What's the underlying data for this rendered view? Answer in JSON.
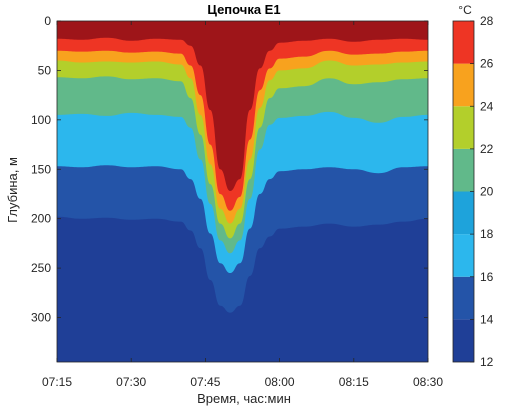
{
  "chart_data": {
    "type": "area",
    "title": "Цепочка E1",
    "xlabel": "Время, час:мин",
    "ylabel": "Глубина, м",
    "x_ticks": [
      "07:15",
      "07:30",
      "07:45",
      "08:00",
      "08:15",
      "08:30"
    ],
    "y_ticks": [
      "0",
      "50",
      "100",
      "150",
      "200",
      "250",
      "300"
    ],
    "y_reversed": true,
    "ylim": [
      0,
      345
    ],
    "xlim": [
      "07:15",
      "08:30"
    ],
    "colorbar": {
      "unit": "°C",
      "ticks": [
        "12",
        "14",
        "16",
        "18",
        "20",
        "22",
        "24",
        "26",
        "28"
      ],
      "levels": [
        12,
        14,
        16,
        18,
        20,
        22,
        24,
        26,
        28
      ],
      "colors": [
        "#1f3f97",
        "#2454a8",
        "#2cb7ed",
        "#1ea3db",
        "#61b98a",
        "#b3cf2b",
        "#f8a21e",
        "#ee3524",
        "#9e1519"
      ]
    },
    "x": [
      "07:15",
      "07:20",
      "07:25",
      "07:30",
      "07:35",
      "07:40",
      "07:42",
      "07:44",
      "07:46",
      "07:48",
      "07:50",
      "07:52",
      "07:54",
      "07:56",
      "07:58",
      "08:00",
      "08:05",
      "08:10",
      "08:15",
      "08:20",
      "08:25",
      "08:30"
    ],
    "isotherms": [
      {
        "name": "26",
        "depths": [
          18,
          19,
          17,
          20,
          18,
          19,
          25,
          45,
          90,
          150,
          172,
          160,
          90,
          48,
          30,
          22,
          20,
          18,
          21,
          19,
          18,
          19
        ]
      },
      {
        "name": "24",
        "depths": [
          30,
          31,
          30,
          32,
          31,
          33,
          45,
          75,
          125,
          175,
          192,
          178,
          120,
          70,
          48,
          38,
          36,
          30,
          34,
          33,
          31,
          30
        ]
      },
      {
        "name": "22",
        "depths": [
          40,
          42,
          41,
          42,
          41,
          44,
          58,
          95,
          145,
          190,
          205,
          190,
          140,
          88,
          60,
          50,
          48,
          40,
          45,
          44,
          42,
          41
        ]
      },
      {
        "name": "20",
        "depths": [
          57,
          58,
          56,
          59,
          58,
          61,
          78,
          115,
          165,
          205,
          220,
          205,
          160,
          108,
          78,
          68,
          66,
          58,
          64,
          62,
          59,
          58
        ]
      },
      {
        "name": "18",
        "depths": [
          95,
          94,
          96,
          93,
          95,
          97,
          108,
          140,
          185,
          222,
          235,
          222,
          180,
          130,
          105,
          98,
          96,
          92,
          98,
          103,
          97,
          95
        ]
      },
      {
        "name": "16",
        "depths": [
          147,
          148,
          146,
          148,
          147,
          150,
          160,
          180,
          215,
          245,
          255,
          245,
          210,
          175,
          160,
          152,
          150,
          148,
          150,
          154,
          148,
          147
        ]
      },
      {
        "name": "14",
        "depths": [
          198,
          200,
          199,
          201,
          200,
          203,
          212,
          230,
          262,
          288,
          295,
          288,
          258,
          230,
          218,
          210,
          208,
          205,
          208,
          206,
          203,
          200
        ]
      }
    ]
  }
}
